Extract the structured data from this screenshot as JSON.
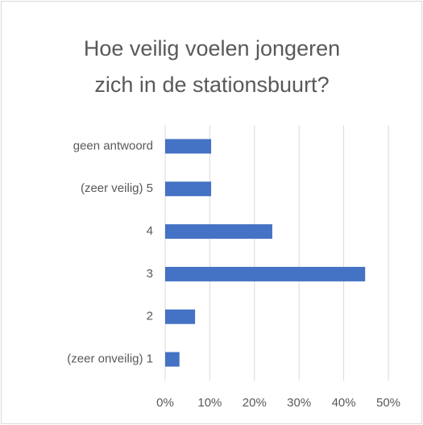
{
  "chart_data": {
    "type": "barh",
    "title": "Hoe veilig voelen jongeren zich in de stationsbuurt?",
    "categories": [
      "geen antwoord",
      "(zeer veilig) 5",
      "4",
      "3",
      "2",
      "(zeer onveilig) 1"
    ],
    "values": [
      10.3,
      10.3,
      24,
      44.8,
      6.7,
      3.2
    ],
    "color": "#4472c4",
    "xlim": [
      0,
      50
    ],
    "xticks": [
      {
        "value": 0,
        "label": "0%"
      },
      {
        "value": 10,
        "label": "10%"
      },
      {
        "value": 20,
        "label": "20%"
      },
      {
        "value": 30,
        "label": "30%"
      },
      {
        "value": 40,
        "label": "40%"
      },
      {
        "value": 50,
        "label": "50%"
      }
    ],
    "grid": true
  }
}
